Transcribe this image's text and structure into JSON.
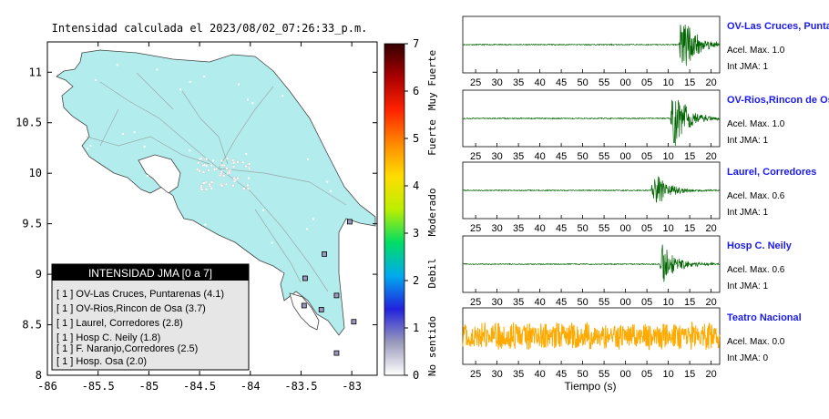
{
  "map": {
    "title": "Intensidad calculada el 2023/08/02_07:26:33_p.m.",
    "x_ticks": [
      "-86",
      "-85.5",
      "-85",
      "-84.5",
      "-84",
      "-83.5",
      "-83"
    ],
    "y_ticks": [
      "11",
      "10.5",
      "10",
      "9.5",
      "9",
      "8.5",
      "8"
    ],
    "xlim": [
      -86.0,
      -82.75
    ],
    "ylim": [
      8.0,
      11.3
    ],
    "land_color": "#b2ecec",
    "stations": [
      {
        "lon": -82.98,
        "lat": 8.53
      },
      {
        "lon": -83.15,
        "lat": 8.79
      },
      {
        "lon": -83.47,
        "lat": 8.69
      },
      {
        "lon": -83.02,
        "lat": 9.52
      },
      {
        "lon": -83.3,
        "lat": 8.65
      },
      {
        "lon": -83.46,
        "lat": 8.96
      },
      {
        "lon": -83.15,
        "lat": 8.22
      },
      {
        "lon": -83.27,
        "lat": 9.2
      }
    ]
  },
  "legend": {
    "title": "INTENSIDAD JMA [0 a 7]",
    "items": [
      "[ 1 ] OV-Las Cruces, Puntarenas (4.1)",
      "[ 1 ] OV-Rios,Rincon de Osa (3.7)",
      "[ 1 ] Laurel, Corredores (2.8)",
      "[ 1 ] Hosp C. Neily (1.8)",
      "[ 1 ] F. Naranjo,Corredores (2.5)",
      "[ 1 ] Hosp. Osa (2.0)"
    ]
  },
  "colorbar": {
    "ticks": [
      "7",
      "6",
      "5",
      "4",
      "3",
      "2",
      "1",
      "0"
    ],
    "labels": [
      "Muy Fuerte",
      "Fuerte",
      "Moderado",
      "Debil",
      "No sentido"
    ],
    "range": [
      0,
      7
    ],
    "colors": [
      "#ffffff",
      "#9999bb",
      "#2222dd",
      "#00aaee",
      "#00dd66",
      "#bbee00",
      "#ffdd00",
      "#ff8800",
      "#ff2200",
      "#aa0000",
      "#330000"
    ]
  },
  "chart_data": {
    "type": "line",
    "xlabel": "Tiempo (s)",
    "traces": [
      {
        "station": "OV-Las Cruces, Puntarenas",
        "accel_max": "Acel. Max. 1.0",
        "int_jma": "Int JMA: 1",
        "color": "#006400",
        "x_ticks": [
          "25",
          "30",
          "35",
          "40",
          "45",
          "50",
          "55",
          "00",
          "05",
          "10",
          "15",
          "20"
        ],
        "onset": 12.5,
        "amplitude": 1.0,
        "noise": 0.02
      },
      {
        "station": "OV-Rios,Rincon de Osa",
        "accel_max": "Acel. Max. 1.0",
        "int_jma": "Int JMA: 1",
        "color": "#006400",
        "x_ticks": [
          "25",
          "30",
          "35",
          "40",
          "45",
          "50",
          "55",
          "00",
          "05",
          "10",
          "15",
          "20"
        ],
        "onset": 10.5,
        "amplitude": 1.0,
        "noise": 0.02
      },
      {
        "station": "Laurel, Corredores",
        "accel_max": "Acel. Max. 0.6",
        "int_jma": "Int JMA: 1",
        "color": "#006400",
        "x_ticks": [
          "25",
          "30",
          "35",
          "40",
          "45",
          "50",
          "55",
          "00",
          "05",
          "10",
          "15",
          "20"
        ],
        "onset": 6.0,
        "amplitude": 0.6,
        "noise": 0.02
      },
      {
        "station": "Hosp C. Neily",
        "accel_max": "Acel. Max. 0.6",
        "int_jma": "Int JMA: 1",
        "color": "#006400",
        "x_ticks": [
          "25",
          "30",
          "35",
          "40",
          "45",
          "50",
          "55",
          "00",
          "05",
          "10",
          "15",
          "20"
        ],
        "onset": 8.0,
        "amplitude": 0.6,
        "noise": 0.02
      },
      {
        "station": "Teatro Nacional",
        "accel_max": "Acel. Max. 0.0",
        "int_jma": "Int JMA: 0",
        "color": "#ffaa00",
        "x_ticks": [
          "25",
          "30",
          "35",
          "40",
          "45",
          "50",
          "55",
          "00",
          "05",
          "10",
          "15",
          "20"
        ],
        "onset": null,
        "amplitude": 0.0,
        "noise": 1.0
      }
    ]
  }
}
